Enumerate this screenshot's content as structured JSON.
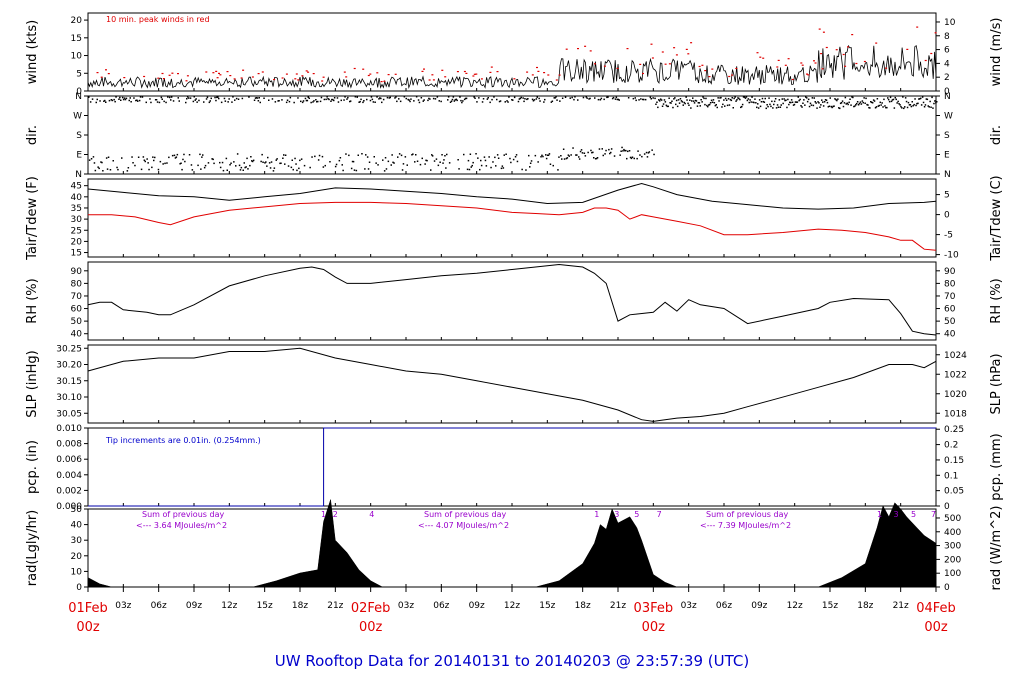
{
  "title": "UW Rooftop Data for 20140131  to  20140203 @ 23:57:39  (UTC)",
  "x_axis": {
    "hour_ticks": [
      "03z",
      "06z",
      "09z",
      "12z",
      "15z",
      "18z",
      "21z"
    ],
    "day_labels": [
      {
        "date": "01Feb",
        "hour": "00z"
      },
      {
        "date": "02Feb",
        "hour": "00z"
      },
      {
        "date": "03Feb",
        "hour": "00z"
      },
      {
        "date": "04Feb",
        "hour": "00z"
      }
    ],
    "range_hours": [
      0,
      72
    ]
  },
  "panels": [
    {
      "id": "wind",
      "ylabel_left": "wind (kts)",
      "ylabel_right": "wind (m/s)",
      "left_ticks": [
        "0",
        "5",
        "10",
        "15",
        "20"
      ],
      "right_ticks": [
        "0",
        "2",
        "4",
        "6",
        "8",
        "10"
      ],
      "note": "10 min. peak winds in red"
    },
    {
      "id": "dir",
      "ylabel_left": "dir.",
      "ylabel_right": "dir.",
      "left_ticks": [
        "N",
        "E",
        "S",
        "W",
        "N"
      ],
      "right_ticks": [
        "N",
        "E",
        "S",
        "W",
        "N"
      ]
    },
    {
      "id": "temp",
      "ylabel_left": "Tair/Tdew (F)",
      "ylabel_right": "Tair/Tdew (C)",
      "left_ticks": [
        "15",
        "20",
        "25",
        "30",
        "35",
        "40",
        "45"
      ],
      "right_ticks": [
        "-10",
        "-5",
        "0",
        "5"
      ]
    },
    {
      "id": "rh",
      "ylabel_left": "RH (%)",
      "ylabel_right": "RH (%)",
      "left_ticks": [
        "40",
        "50",
        "60",
        "70",
        "80",
        "90"
      ],
      "right_ticks": [
        "40",
        "50",
        "60",
        "70",
        "80",
        "90"
      ]
    },
    {
      "id": "slp",
      "ylabel_left": "SLP (inHg)",
      "ylabel_right": "SLP (hPa)",
      "left_ticks": [
        "30.05",
        "30.10",
        "30.15",
        "30.20",
        "30.25"
      ],
      "right_ticks": [
        "1018",
        "1020",
        "1022",
        "1024"
      ]
    },
    {
      "id": "pcp",
      "ylabel_left": "pcp. (in)",
      "ylabel_right": "pcp. (mm)",
      "left_ticks": [
        "0.000",
        "0.002",
        "0.004",
        "0.006",
        "0.008",
        "0.010"
      ],
      "right_ticks": [
        "0",
        "0.05",
        "0.1",
        "0.15",
        "0.2",
        "0.25"
      ],
      "note": "Tip increments are 0.01in. (0.254mm.)"
    },
    {
      "id": "rad",
      "ylabel_left": "rad(Lgly/hr)",
      "ylabel_right": "rad (W/m^2)",
      "left_ticks": [
        "0",
        "10",
        "20",
        "30",
        "40",
        "50"
      ],
      "right_ticks": [
        "0",
        "100",
        "200",
        "300",
        "400",
        "500"
      ]
    }
  ],
  "rad_annotations": [
    {
      "line1": "Sum of previous day",
      "line2": "<--- 3.64 MJoules/m^2"
    },
    {
      "line1": "Sum of previous day",
      "line2": "<--- 4.07 MJoules/m^2"
    },
    {
      "line1": "Sum of previous day",
      "line2": "<--- 7.39 MJoules/m^2"
    }
  ],
  "rad_markers": [
    {
      "hour": 20.0,
      "text": "1"
    },
    {
      "hour": 21.0,
      "text": "2"
    },
    {
      "hour": 24.1,
      "text": "4"
    },
    {
      "hour": 43.2,
      "text": "1"
    },
    {
      "hour": 44.9,
      "text": "3"
    },
    {
      "hour": 46.6,
      "text": "5"
    },
    {
      "hour": 48.5,
      "text": "7"
    },
    {
      "hour": 67.2,
      "text": "1"
    },
    {
      "hour": 68.6,
      "text": "3"
    },
    {
      "hour": 70.1,
      "text": "5"
    },
    {
      "hour": 71.8,
      "text": "7"
    }
  ],
  "chart_data": {
    "type": "line",
    "x_unit": "hours since 01Feb 00z",
    "series": [
      {
        "name": "Tair (F)",
        "color": "#000000",
        "x": [
          0,
          3,
          6,
          9,
          12,
          15,
          18,
          21,
          24,
          27,
          30,
          33,
          36,
          39,
          42,
          45,
          47,
          48,
          50,
          53,
          56,
          59,
          62,
          65,
          68,
          71,
          72
        ],
        "values": [
          43.5,
          42,
          40.5,
          40,
          38.5,
          40,
          41.5,
          44,
          43.5,
          42.5,
          41.5,
          40,
          39,
          37,
          37.5,
          43,
          46,
          44.5,
          41,
          38,
          36.5,
          35,
          34.5,
          35,
          37,
          37.5,
          38
        ]
      },
      {
        "name": "Tdew (F)",
        "color": "#e00000",
        "x": [
          0,
          2,
          4,
          6,
          7,
          9,
          12,
          15,
          18,
          21,
          24,
          27,
          30,
          33,
          36,
          38,
          40,
          42,
          43,
          44,
          45,
          46,
          47,
          48,
          50,
          52,
          54,
          56,
          59,
          62,
          64,
          66,
          68,
          69,
          70,
          71,
          72
        ],
        "values": [
          32,
          32,
          31,
          28.5,
          27.5,
          31,
          34,
          35.5,
          37,
          37.5,
          37.5,
          37,
          36,
          35,
          33,
          32.5,
          32,
          33,
          35,
          35,
          34,
          30,
          32,
          31,
          29,
          27,
          23,
          23,
          24,
          25.5,
          25,
          24,
          22,
          20.5,
          20.5,
          16.5,
          16
        ]
      },
      {
        "name": "RH (%)",
        "color": "#000000",
        "x": [
          0,
          1,
          2,
          3,
          5,
          6,
          7,
          9,
          12,
          15,
          18,
          19,
          20,
          21,
          22,
          24,
          27,
          30,
          33,
          36,
          39,
          40,
          42,
          43,
          44,
          45,
          46,
          48,
          49,
          50,
          51,
          52,
          54,
          56,
          59,
          62,
          63,
          65,
          68,
          69,
          70,
          71,
          72
        ],
        "values": [
          63,
          65,
          65,
          59,
          57,
          55,
          55,
          63,
          78,
          86,
          92,
          93,
          91,
          85,
          80,
          80,
          83,
          86,
          88,
          91,
          94,
          95,
          93,
          88,
          80,
          50,
          55,
          57,
          65,
          58,
          67,
          63,
          60,
          48,
          54,
          60,
          65,
          68,
          67,
          56,
          42,
          40,
          39
        ]
      },
      {
        "name": "SLP (inHg)",
        "color": "#000000",
        "x": [
          0,
          3,
          6,
          9,
          12,
          15,
          18,
          21,
          24,
          27,
          30,
          33,
          36,
          39,
          42,
          45,
          47,
          48,
          49,
          50,
          52,
          54,
          56,
          58,
          60,
          62,
          65,
          68,
          70,
          71,
          72
        ],
        "values": [
          30.18,
          30.21,
          30.22,
          30.22,
          30.24,
          30.24,
          30.25,
          30.22,
          30.2,
          30.18,
          30.17,
          30.15,
          30.13,
          30.11,
          30.09,
          30.06,
          30.03,
          30.025,
          30.03,
          30.035,
          30.04,
          30.05,
          30.07,
          30.09,
          30.11,
          30.13,
          30.16,
          30.2,
          30.2,
          30.19,
          30.21
        ]
      },
      {
        "name": "pcp (in)",
        "color": "#0000aa",
        "x": [
          0,
          20,
          20,
          72
        ],
        "values": [
          0.0,
          0.0,
          0.01,
          0.01
        ]
      },
      {
        "name": "rad (Lgly/hr)",
        "color": "#000000",
        "x": [
          0,
          1,
          2,
          14,
          16,
          18,
          19.5,
          20,
          20.6,
          21,
          22,
          23,
          24,
          25,
          38,
          40,
          42,
          43,
          43.5,
          44,
          44.5,
          45,
          46,
          46.6,
          47,
          48,
          49,
          50,
          62,
          64,
          66,
          67,
          67.5,
          68,
          68.5,
          69,
          69.5,
          70,
          71,
          72
        ],
        "values": [
          6,
          2,
          0,
          0,
          4,
          9,
          11,
          42,
          56,
          30,
          22,
          11,
          4,
          0,
          0,
          4,
          15,
          28,
          40,
          37,
          50,
          41,
          45,
          38,
          30,
          8,
          3,
          0,
          0,
          6,
          15,
          38,
          52,
          45,
          54,
          50,
          45,
          41,
          33,
          28
        ]
      }
    ]
  }
}
